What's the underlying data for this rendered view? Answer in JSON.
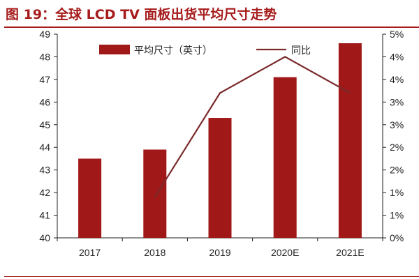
{
  "figure": {
    "title": "图 19：全球 LCD TV 面板出货平均尺寸走势"
  },
  "colors": {
    "accent": "#a61b1b",
    "bar": "#a01818",
    "line": "#7b2a2a",
    "axis": "#222222"
  },
  "chart_data": {
    "type": "bar",
    "categories": [
      "2017",
      "2018",
      "2019",
      "2020E",
      "2021E"
    ],
    "series": [
      {
        "name": "平均尺寸（英寸）",
        "type": "bar",
        "axis": "left",
        "values": [
          43.5,
          43.9,
          45.3,
          47.1,
          48.6
        ]
      },
      {
        "name": "同比",
        "type": "line",
        "axis": "right",
        "values": [
          null,
          0.9,
          3.2,
          4.0,
          3.2
        ]
      }
    ],
    "ylim_left": [
      40,
      49
    ],
    "yticks_left": [
      "40",
      "41",
      "42",
      "43",
      "44",
      "45",
      "46",
      "47",
      "48",
      "49"
    ],
    "ylim_right": [
      0,
      4.5
    ],
    "yticks_right": [
      "0%",
      "1%",
      "1%",
      "2%",
      "2%",
      "3%",
      "3%",
      "4%",
      "4%",
      "5%"
    ],
    "legend_position": "top",
    "grid": false
  }
}
